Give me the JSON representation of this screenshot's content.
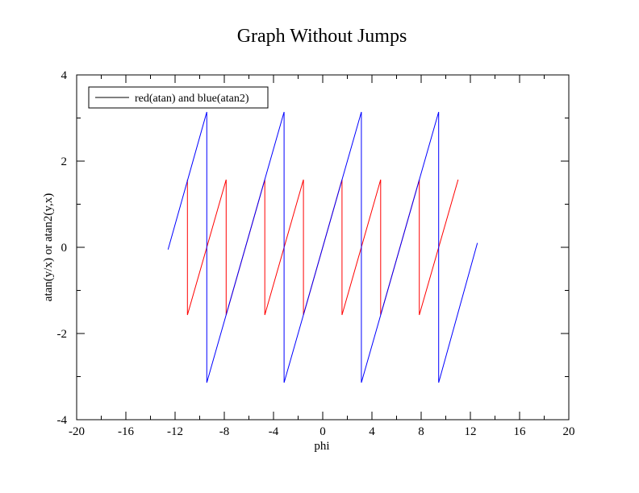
{
  "chart_data": {
    "type": "line",
    "title": "Graph Without Jumps",
    "xlabel": "phi",
    "ylabel": "atan(y/x) or atan2(y,x)",
    "xlim": [
      -20,
      20
    ],
    "ylim": [
      -4,
      4
    ],
    "x_ticks": [
      "-20",
      "-16",
      "-12",
      "-8",
      "-4",
      "0",
      "4",
      "8",
      "12",
      "16",
      "20"
    ],
    "y_ticks": [
      "-4",
      "-2",
      "0",
      "2",
      "4"
    ],
    "grid": false,
    "legend": {
      "position": "top-left",
      "entries": [
        "red(atan) and blue(atan2)"
      ]
    },
    "series": [
      {
        "color": "#ff0000",
        "x": [
          -11.0,
          -11.0,
          -11.0,
          -7.85,
          -7.85,
          -4.71,
          -4.71,
          -1.57,
          -1.57,
          1.57,
          1.57,
          4.71,
          4.71,
          7.85,
          7.85,
          11.0
        ],
        "y": [
          1.57,
          0.0,
          -1.57,
          1.57,
          -1.57,
          1.57,
          -1.57,
          1.57,
          -1.57,
          1.57,
          -1.57,
          1.57,
          -1.57,
          1.57,
          -1.57,
          1.57
        ]
      },
      {
        "color": "#0000ff",
        "x": [
          -12.57,
          -9.42,
          -9.42,
          -3.14,
          -3.14,
          3.14,
          3.14,
          9.42,
          9.42,
          12.57
        ],
        "y": [
          -0.05,
          3.14,
          -3.14,
          3.14,
          -3.14,
          3.14,
          -3.14,
          3.14,
          -3.14,
          0.1
        ]
      }
    ]
  }
}
